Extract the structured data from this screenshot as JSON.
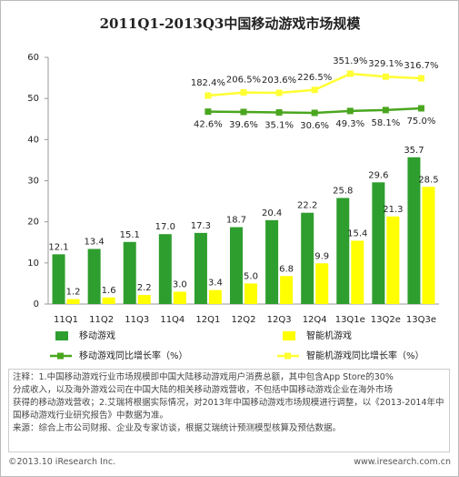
{
  "chart_data": {
    "type": "bar",
    "title": "2011Q1-2013Q3中国移动游戏市场规模",
    "categories": [
      "11Q1",
      "11Q2",
      "11Q3",
      "11Q4",
      "12Q1",
      "12Q2",
      "12Q3",
      "12Q4",
      "13Q1e",
      "13Q2e",
      "13Q3e"
    ],
    "ylim": [
      0,
      60
    ],
    "yticks": [
      0,
      10,
      20,
      30,
      40,
      50,
      60
    ],
    "series": [
      {
        "name": "移动游戏",
        "color": "#2e9e2e",
        "values": [
          12.1,
          13.4,
          15.1,
          17.0,
          17.3,
          18.7,
          20.4,
          22.2,
          25.8,
          29.6,
          35.7
        ],
        "value_labels": [
          "12.1",
          "13.4",
          "15.1",
          "17.0",
          "17.3",
          "18.7",
          "20.4",
          "22.2",
          "25.8",
          "29.6",
          "35.7"
        ]
      },
      {
        "name": "智能机游戏",
        "color": "#ffff00",
        "values": [
          1.2,
          1.6,
          2.2,
          3.0,
          3.4,
          5.0,
          6.8,
          9.9,
          15.4,
          21.3,
          28.5
        ],
        "value_labels": [
          "1.2",
          "1.6",
          "2.2",
          "3.0",
          "3.4",
          "5.0",
          "6.8",
          "9.9",
          "15.4",
          "21.3",
          "28.5"
        ]
      },
      {
        "name": "移动游戏同比增长率（%）",
        "type": "line",
        "color": "#4aa61f",
        "values": [
          null,
          null,
          null,
          null,
          42.6,
          39.6,
          35.1,
          30.6,
          49.3,
          58.1,
          75.0
        ],
        "value_labels": [
          null,
          null,
          null,
          null,
          "42.6%",
          "39.6%",
          "35.1%",
          "30.6%",
          "49.3%",
          "58.1%",
          "75.0%"
        ]
      },
      {
        "name": "智能机游戏同比增长率（%）",
        "type": "line",
        "color": "#ffff33",
        "values": [
          null,
          null,
          null,
          null,
          182.4,
          206.5,
          203.6,
          226.5,
          351.9,
          329.1,
          316.7
        ],
        "value_labels": [
          null,
          null,
          null,
          null,
          "182.4%",
          "206.5%",
          "203.6%",
          "226.5%",
          "351.9%",
          "329.1%",
          "316.7%"
        ]
      }
    ]
  },
  "notes": [
    "注释：1.中国移动游戏行业市场规模即中国大陆移动游戏用户消费总额，其中包含App Store的30%",
    "分成收入，以及海外游戏公司在中国大陆的相关移动游戏营收，不包括中国移动游戏企业在海外市场",
    "获得的移动游戏营收；2.艾瑞将根据实际情况，对2013年中国移动游戏市场规模进行调整，以《2013-2014年中",
    "国移动游戏行业研究报告》中数据为准。",
    "来源：综合上市公司财报、企业及专家访谈，根据艾瑞统计预测模型核算及预估数据。"
  ],
  "copyright": "©2013.10 iResearch Inc.",
  "website": "www.iresearch.com.cn"
}
